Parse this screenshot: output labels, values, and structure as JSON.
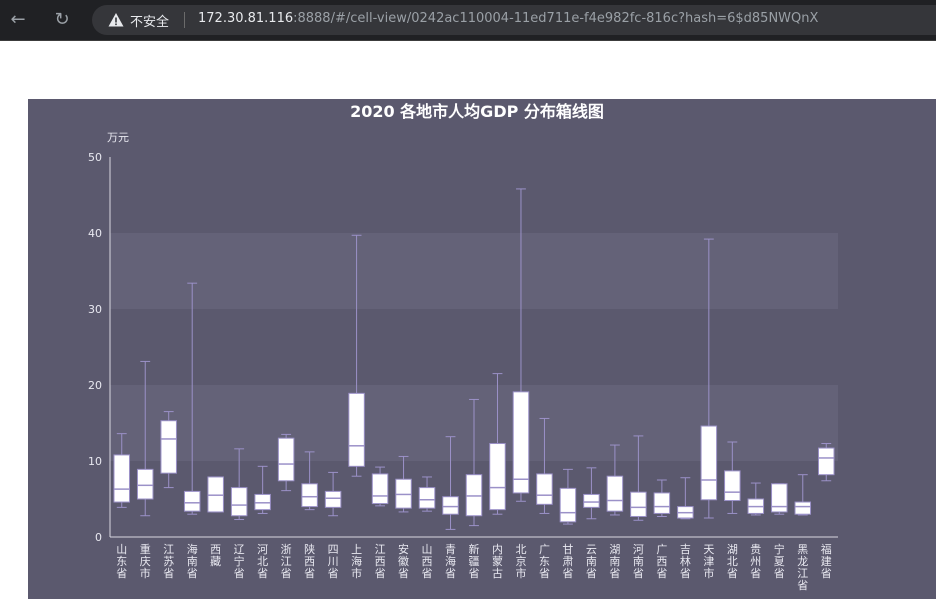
{
  "browser": {
    "security_label": "不安全",
    "url_host": "172.30.81.116",
    "url_rest": ":8888/#/cell-view/0242ac110004-11ed711e-f4e982fc-816c?hash=6$d85NWQnX",
    "icons": [
      "back-arrow-icon",
      "reload-icon",
      "warning-triangle-icon"
    ]
  },
  "chart_data": {
    "type": "boxplot",
    "title": "2020 各地市人均GDP 分布箱线图",
    "ylabel": "万元",
    "ylim": [
      0,
      50
    ],
    "yticks": [
      0,
      10,
      20,
      30,
      40,
      50
    ],
    "colors": {
      "background": "#5b596e",
      "band": "#646278",
      "box": "#ffffff",
      "whisker": "#9b91c8",
      "text": "#e8e8f0",
      "title": "#ffffff"
    },
    "categories": [
      "山东省",
      "重庆市",
      "江苏省",
      "海南省",
      "西藏",
      "辽宁省",
      "河北省",
      "浙江省",
      "陕西省",
      "四川省",
      "上海市",
      "江西省",
      "安徽省",
      "山西省",
      "青海省",
      "新疆省",
      "内蒙古",
      "北京市",
      "广东省",
      "甘肃省",
      "云南省",
      "湖南省",
      "河南省",
      "广西省",
      "吉林省",
      "天津市",
      "湖北省",
      "贵州省",
      "宁夏省",
      "黑龙江省",
      "福建省"
    ],
    "boxes": [
      {
        "min": 3.9,
        "q1": 4.6,
        "median": 6.3,
        "q3": 10.8,
        "max": 13.6
      },
      {
        "min": 2.8,
        "q1": 5.0,
        "median": 6.8,
        "q3": 8.9,
        "max": 23.1
      },
      {
        "min": 6.5,
        "q1": 8.4,
        "median": 12.9,
        "q3": 15.3,
        "max": 16.5
      },
      {
        "min": 3.0,
        "q1": 3.4,
        "median": 4.5,
        "q3": 6.0,
        "max": 33.4
      },
      {
        "min": 3.3,
        "q1": 3.3,
        "median": 5.5,
        "q3": 7.9,
        "max": 7.9
      },
      {
        "min": 2.3,
        "q1": 2.8,
        "median": 4.2,
        "q3": 6.5,
        "max": 11.6
      },
      {
        "min": 3.1,
        "q1": 3.6,
        "median": 4.5,
        "q3": 5.6,
        "max": 9.3
      },
      {
        "min": 6.1,
        "q1": 7.4,
        "median": 9.6,
        "q3": 13.0,
        "max": 13.5
      },
      {
        "min": 3.6,
        "q1": 4.0,
        "median": 5.3,
        "q3": 7.0,
        "max": 11.2
      },
      {
        "min": 2.8,
        "q1": 3.9,
        "median": 5.1,
        "q3": 6.0,
        "max": 8.5
      },
      {
        "min": 8.0,
        "q1": 9.3,
        "median": 12.0,
        "q3": 18.9,
        "max": 39.7
      },
      {
        "min": 4.1,
        "q1": 4.4,
        "median": 5.4,
        "q3": 8.3,
        "max": 9.2
      },
      {
        "min": 3.3,
        "q1": 3.8,
        "median": 5.6,
        "q3": 7.6,
        "max": 10.6
      },
      {
        "min": 3.4,
        "q1": 3.8,
        "median": 4.9,
        "q3": 6.5,
        "max": 7.9
      },
      {
        "min": 1.0,
        "q1": 3.0,
        "median": 4.0,
        "q3": 5.3,
        "max": 13.2
      },
      {
        "min": 1.5,
        "q1": 2.8,
        "median": 5.4,
        "q3": 8.2,
        "max": 18.1
      },
      {
        "min": 3.0,
        "q1": 3.6,
        "median": 6.5,
        "q3": 12.3,
        "max": 21.5
      },
      {
        "min": 4.7,
        "q1": 5.8,
        "median": 7.6,
        "q3": 19.1,
        "max": 45.8
      },
      {
        "min": 3.1,
        "q1": 4.3,
        "median": 5.5,
        "q3": 8.3,
        "max": 15.6
      },
      {
        "min": 1.7,
        "q1": 2.0,
        "median": 3.2,
        "q3": 6.4,
        "max": 8.9
      },
      {
        "min": 2.4,
        "q1": 3.9,
        "median": 4.6,
        "q3": 5.6,
        "max": 9.1
      },
      {
        "min": 2.9,
        "q1": 3.4,
        "median": 4.8,
        "q3": 8.0,
        "max": 12.1
      },
      {
        "min": 2.2,
        "q1": 2.7,
        "median": 3.9,
        "q3": 5.9,
        "max": 13.3
      },
      {
        "min": 2.7,
        "q1": 3.1,
        "median": 4.0,
        "q3": 5.8,
        "max": 7.5
      },
      {
        "min": 2.4,
        "q1": 2.5,
        "median": 3.2,
        "q3": 4.0,
        "max": 7.8
      },
      {
        "min": 2.5,
        "q1": 4.9,
        "median": 7.5,
        "q3": 14.6,
        "max": 39.2
      },
      {
        "min": 3.1,
        "q1": 4.8,
        "median": 5.9,
        "q3": 8.7,
        "max": 12.5
      },
      {
        "min": 2.9,
        "q1": 3.1,
        "median": 4.0,
        "q3": 5.0,
        "max": 7.1
      },
      {
        "min": 3.0,
        "q1": 3.3,
        "median": 4.0,
        "q3": 7.0,
        "max": 7.0
      },
      {
        "min": 2.9,
        "q1": 3.0,
        "median": 4.0,
        "q3": 4.6,
        "max": 8.2
      },
      {
        "min": 7.4,
        "q1": 8.2,
        "median": 10.4,
        "q3": 11.7,
        "max": 12.3
      }
    ]
  }
}
